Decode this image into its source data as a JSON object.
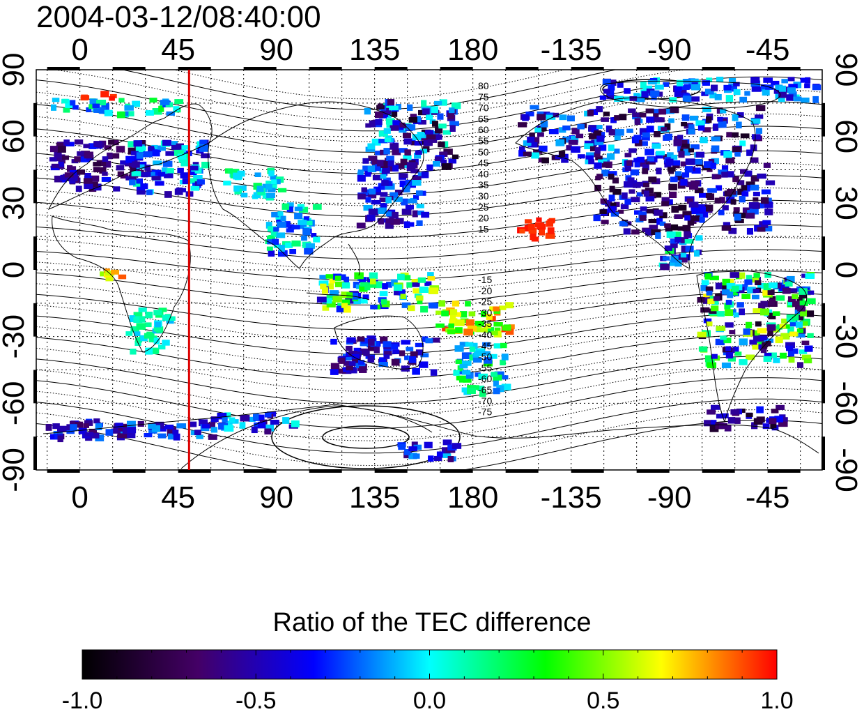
{
  "title": "2004-03-12/08:40:00",
  "map": {
    "lon_ticks_labels": [
      "0",
      "45",
      "90",
      "135",
      "180",
      "-135",
      "-90",
      "-45"
    ],
    "lon_ticks_deg": [
      0,
      45,
      90,
      135,
      180,
      225,
      270,
      315
    ],
    "lon_range_deg": [
      -20,
      340
    ],
    "lat_ticks_labels": [
      "90",
      "60",
      "30",
      "0",
      "-30",
      "-60",
      "-90"
    ],
    "lat_ticks_deg": [
      90,
      60,
      30,
      0,
      -30,
      -60,
      -90
    ],
    "lat_range_deg": [
      -90,
      90
    ],
    "red_meridian_lon": 50,
    "red_meridian_color": "#dd0000",
    "grid": "dotted",
    "contour_labels_north": [
      "80",
      "75",
      "70",
      "65",
      "60",
      "55",
      "50",
      "45",
      "40",
      "35",
      "30",
      "25",
      "20",
      "15"
    ],
    "contour_labels_south": [
      "-15",
      "-20",
      "-25",
      "-30",
      "-35",
      "-40",
      "-45",
      "-50",
      "-55",
      "-60",
      "-65",
      "-70",
      "-75"
    ]
  },
  "colorbar": {
    "title": "Ratio of the TEC difference",
    "min": -1.0,
    "max": 1.0,
    "tick_labels": [
      "-1.0",
      "-0.5",
      "0.0",
      "0.5",
      "1.0"
    ],
    "colors": [
      "#000000",
      "#440066",
      "#0000ff",
      "#00ffff",
      "#00ff00",
      "#ffff00",
      "#ff0000"
    ]
  }
}
